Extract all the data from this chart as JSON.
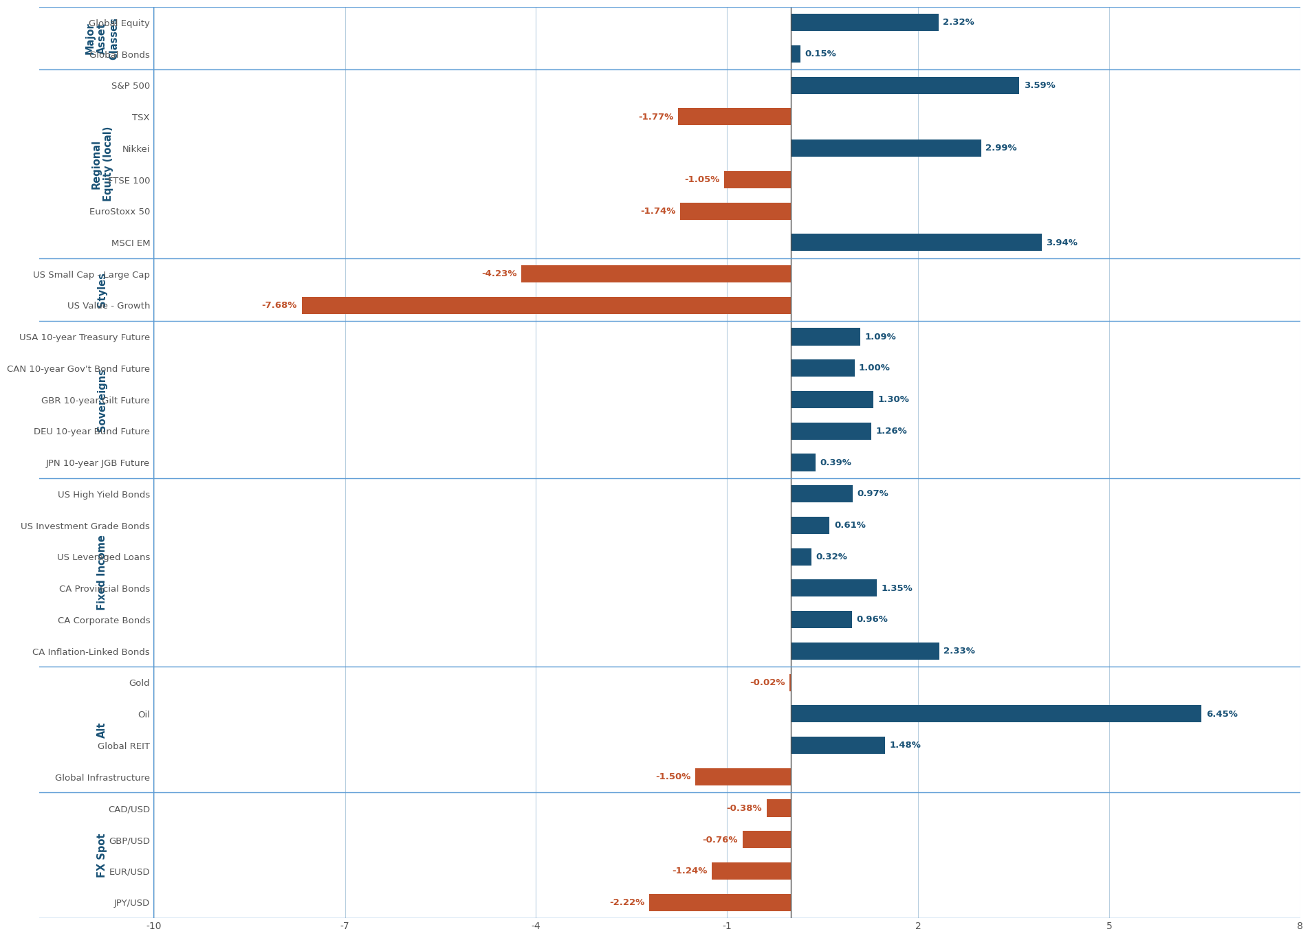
{
  "categories": [
    "Global Equity",
    "Global Bonds",
    "S&P 500",
    "TSX",
    "Nikkei",
    "FTSE 100",
    "EuroStoxx 50",
    "MSCI EM",
    "US Small Cap - Large Cap",
    "US Value - Growth",
    "USA 10-year Treasury Future",
    "CAN 10-year Gov't Bond Future",
    "GBR 10-year Gilt Future",
    "DEU 10-year Bund Future",
    "JPN 10-year JGB Future",
    "US High Yield Bonds",
    "US Investment Grade Bonds",
    "US Leveraged Loans",
    "CA Provincial Bonds",
    "CA Corporate Bonds",
    "CA Inflation-Linked Bonds",
    "Gold",
    "Oil",
    "Global REIT",
    "Global Infrastructure",
    "CAD/USD",
    "GBP/USD",
    "EUR/USD",
    "JPY/USD"
  ],
  "values": [
    2.32,
    0.15,
    3.59,
    -1.77,
    2.99,
    -1.05,
    -1.74,
    3.94,
    -4.23,
    -7.68,
    1.09,
    1.0,
    1.3,
    1.26,
    0.39,
    0.97,
    0.61,
    0.32,
    1.35,
    0.96,
    2.33,
    -0.02,
    6.45,
    1.48,
    -1.5,
    -0.38,
    -0.76,
    -1.24,
    -2.22
  ],
  "groups": [
    {
      "label": "Major\nAsset\nClasses",
      "start": 0,
      "end": 2
    },
    {
      "label": "Regional\nEquity (local)",
      "start": 2,
      "end": 8
    },
    {
      "label": "Styles",
      "start": 8,
      "end": 10
    },
    {
      "label": "Sovereigns",
      "start": 10,
      "end": 15
    },
    {
      "label": "Fixed Income",
      "start": 15,
      "end": 21
    },
    {
      "label": "Alt",
      "start": 21,
      "end": 25
    },
    {
      "label": "FX Spot",
      "start": 25,
      "end": 29
    }
  ],
  "positive_color": "#1a5276",
  "negative_color": "#c0522b",
  "group_label_color": "#1a5276",
  "grid_color": "#b8cfe0",
  "background_color": "#ffffff",
  "separator_color": "#5b9bd5",
  "bar_height": 0.55,
  "xlim": [
    -10,
    8
  ],
  "xticks": [
    -10,
    -7,
    -4,
    -1,
    2,
    5,
    8
  ],
  "label_fontsize": 9.5,
  "value_fontsize": 9.5,
  "group_fontsize": 10.5,
  "tick_fontsize": 10
}
